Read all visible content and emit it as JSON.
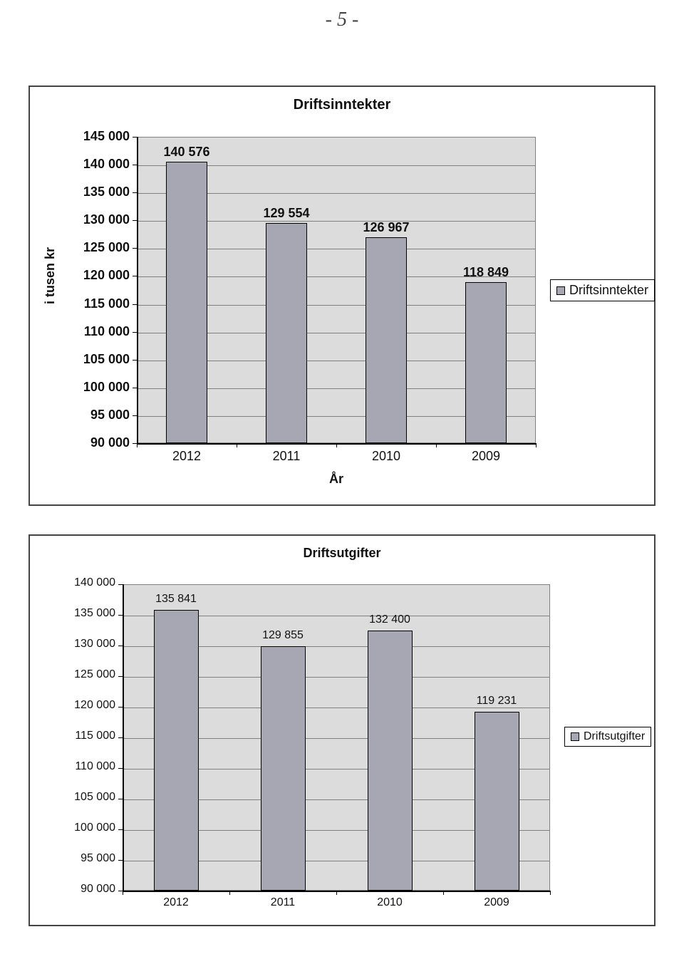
{
  "page_number_text": "- 5 -",
  "chart1": {
    "type": "bar",
    "title": "Driftsinntekter",
    "y_axis_label": "i tusen kr",
    "x_axis_label": "År",
    "ylim": [
      90000,
      145000
    ],
    "ytick_step": 5000,
    "yticks": [
      "145 000",
      "140 000",
      "135 000",
      "130 000",
      "125 000",
      "120 000",
      "115 000",
      "110 000",
      "105 000",
      "100 000",
      "95 000",
      "90 000"
    ],
    "ytick_values": [
      145000,
      140000,
      135000,
      130000,
      125000,
      120000,
      115000,
      110000,
      105000,
      100000,
      95000,
      90000
    ],
    "categories": [
      "2012",
      "2011",
      "2010",
      "2009"
    ],
    "values": [
      140576,
      129554,
      126967,
      118849
    ],
    "value_labels": [
      "140 576",
      "129 554",
      "126 967",
      "118 849"
    ],
    "bar_fill_color": "#a7a7b3",
    "bar_border_color": "#000000",
    "plot_bg_color": "#dcdcdc",
    "grid_color": "#808080",
    "legend_label": "Driftsinntekter",
    "font_weight": "bold",
    "tick_fontsize": 18,
    "title_fontsize": 20,
    "label_fontsize": 18,
    "bar_width_ratio": 0.42
  },
  "chart2": {
    "type": "bar",
    "title": "Driftsutgifter",
    "ylim": [
      90000,
      140000
    ],
    "ytick_step": 5000,
    "yticks": [
      "140 000",
      "135 000",
      "130 000",
      "125 000",
      "120 000",
      "115 000",
      "110 000",
      "105 000",
      "100 000",
      "95 000",
      "90 000"
    ],
    "ytick_values": [
      140000,
      135000,
      130000,
      125000,
      120000,
      115000,
      110000,
      105000,
      100000,
      95000,
      90000
    ],
    "categories": [
      "2012",
      "2011",
      "2010",
      "2009"
    ],
    "values": [
      135841,
      129855,
      132400,
      119231
    ],
    "value_labels": [
      "135 841",
      "129 855",
      "132 400",
      "119 231"
    ],
    "bar_fill_color": "#a7a7b3",
    "bar_border_color": "#000000",
    "plot_bg_color": "#dcdcdc",
    "grid_color": "#808080",
    "legend_label": "Driftsutgifter",
    "font_weight": "normal",
    "tick_fontsize": 16,
    "title_fontsize": 18,
    "label_fontsize": 16,
    "bar_width_ratio": 0.42
  }
}
